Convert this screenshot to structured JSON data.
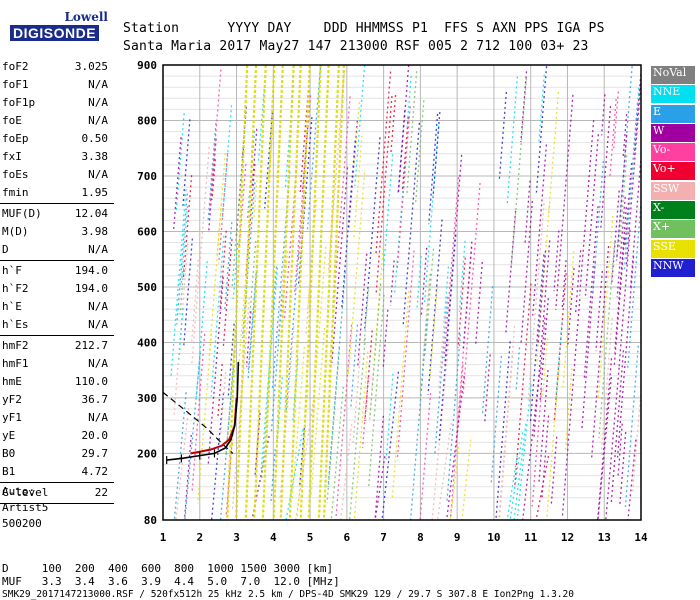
{
  "logo": {
    "line1": "Lowell",
    "line2": "DIGISONDE"
  },
  "header": {
    "row1": "Station      YYYY DAY    DDD HHMMSS P1  FFS S AXN PPS IGA PS",
    "row2": "Santa Maria 2017 May27 147 213000 RSF 005 2 712 100 03+ 23"
  },
  "params": [
    [
      {
        "k": "foF2",
        "v": "3.025"
      },
      {
        "k": "foF1",
        "v": "N/A"
      },
      {
        "k": "foF1p",
        "v": "N/A"
      },
      {
        "k": "foE",
        "v": "N/A"
      },
      {
        "k": "foEp",
        "v": "0.50"
      },
      {
        "k": "fxI",
        "v": "3.38"
      },
      {
        "k": "foEs",
        "v": "N/A"
      },
      {
        "k": "fmin",
        "v": "1.95"
      }
    ],
    [
      {
        "k": "MUF(D)",
        "v": "12.04"
      },
      {
        "k": "M(D)",
        "v": "3.98"
      },
      {
        "k": "D",
        "v": "N/A"
      }
    ],
    [
      {
        "k": "h`F",
        "v": "194.0"
      },
      {
        "k": "h`F2",
        "v": "194.0"
      },
      {
        "k": "h`E",
        "v": "N/A"
      },
      {
        "k": "h`Es",
        "v": "N/A"
      }
    ],
    [
      {
        "k": "hmF2",
        "v": "212.7"
      },
      {
        "k": "hmF1",
        "v": "N/A"
      },
      {
        "k": "hmE",
        "v": "110.0"
      },
      {
        "k": "yF2",
        "v": "36.7"
      },
      {
        "k": "yF1",
        "v": "N/A"
      },
      {
        "k": "yE",
        "v": "20.0"
      },
      {
        "k": "B0",
        "v": "29.7"
      },
      {
        "k": "B1",
        "v": "4.72"
      }
    ],
    [
      {
        "k": "C-level",
        "v": "22"
      }
    ]
  ],
  "auto": {
    "line1": "Auto:",
    "line2": "Artist5",
    "line3": "500200"
  },
  "legend": [
    {
      "label": "NoVal",
      "color": "#808080"
    },
    {
      "label": "NNE",
      "color": "#00e0f0"
    },
    {
      "label": "E",
      "color": "#2aa0e8"
    },
    {
      "label": "W",
      "color": "#a000a0"
    },
    {
      "label": "Vo-",
      "color": "#ff40a0"
    },
    {
      "label": "Vo+",
      "color": "#f00030"
    },
    {
      "label": "SSW",
      "color": "#f4b0b0"
    },
    {
      "label": "X-",
      "color": "#00801a"
    },
    {
      "label": "X+",
      "color": "#70c060"
    },
    {
      "label": "SSE",
      "color": "#e8e000"
    },
    {
      "label": "NNW",
      "color": "#2020d0"
    }
  ],
  "bottom": {
    "row1": "D     100  200  400  600  800  1000 1500 3000 [km]",
    "row2": "MUF   3.3  3.4  3.6  3.9  4.4  5.0  7.0  12.0 [MHz]",
    "row3": "SMK29_2017147213000.RSF / 520fx512h 25 kHz 2.5 km / DPS-4D SMK29 129 / 29.7 S 307.8 E Ion2Png 1.3.20"
  },
  "chart_data": {
    "type": "scatter",
    "xlim": [
      1,
      14
    ],
    "ylim": [
      80,
      900
    ],
    "x_ticks": [
      1,
      2,
      3,
      4,
      5,
      6,
      7,
      8,
      9,
      10,
      11,
      12,
      13,
      14
    ],
    "y_ticks": [
      80,
      200,
      300,
      400,
      500,
      600,
      700,
      800,
      900
    ],
    "grid": true,
    "profile": {
      "x": [
        1.1,
        1.5,
        2.0,
        2.4,
        2.7,
        2.85,
        2.95,
        3.02,
        3.05
      ],
      "y": [
        188,
        191,
        196,
        200,
        210,
        225,
        250,
        300,
        365
      ]
    },
    "trace": {
      "x": [
        1.75,
        2.0,
        2.3,
        2.6,
        2.8,
        2.95,
        3.0
      ],
      "y": [
        200,
        203,
        207,
        214,
        225,
        250,
        300
      ]
    },
    "fit_curve": {
      "x": [
        1.0,
        1.6,
        2.2,
        2.6,
        2.9
      ],
      "y": [
        310,
        278,
        245,
        218,
        200
      ]
    }
  }
}
